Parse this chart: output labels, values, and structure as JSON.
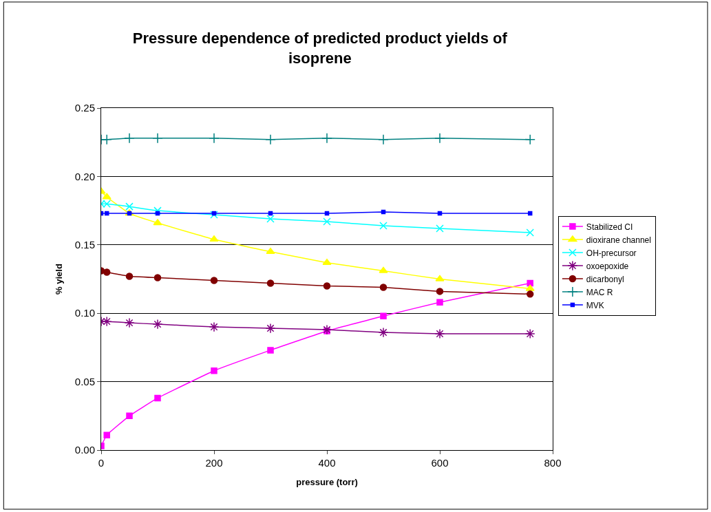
{
  "chart_data": {
    "type": "line",
    "title": "Pressure dependence of predicted product yields of isoprene",
    "xlabel": "pressure (torr)",
    "ylabel": "% yield",
    "x": [
      0,
      10,
      50,
      100,
      200,
      300,
      400,
      500,
      600,
      760
    ],
    "series": [
      {
        "name": "Stabilized CI",
        "color": "#ff00ff",
        "marker": "square",
        "values": [
          0.003,
          0.011,
          0.025,
          0.038,
          0.058,
          0.073,
          0.087,
          0.098,
          0.108,
          0.122
        ]
      },
      {
        "name": "dioxirane channel",
        "color": "#ffff00",
        "marker": "triangle",
        "values": [
          0.189,
          0.185,
          0.173,
          0.166,
          0.154,
          0.145,
          0.137,
          0.131,
          0.125,
          0.118
        ]
      },
      {
        "name": "OH-precursor",
        "color": "#00ffff",
        "marker": "x",
        "values": [
          0.18,
          0.18,
          0.178,
          0.175,
          0.172,
          0.169,
          0.167,
          0.164,
          0.162,
          0.159
        ]
      },
      {
        "name": "oxoepoxide",
        "color": "#800080",
        "marker": "cross",
        "values": [
          0.094,
          0.094,
          0.093,
          0.092,
          0.09,
          0.089,
          0.088,
          0.086,
          0.085,
          0.085
        ]
      },
      {
        "name": "dicarbonyl",
        "color": "#800000",
        "marker": "circle",
        "values": [
          0.131,
          0.13,
          0.127,
          0.126,
          0.124,
          0.122,
          0.12,
          0.119,
          0.116,
          0.114
        ]
      },
      {
        "name": "MAC R",
        "color": "#008080",
        "marker": "cross",
        "values": [
          0.227,
          0.227,
          0.228,
          0.228,
          0.228,
          0.227,
          0.228,
          0.227,
          0.228,
          0.227
        ]
      },
      {
        "name": "MVK",
        "color": "#0000ff",
        "marker": "square",
        "values": [
          0.173,
          0.173,
          0.173,
          0.173,
          0.173,
          0.173,
          0.173,
          0.174,
          0.173,
          0.173
        ]
      }
    ],
    "xlim": [
      0,
      800
    ],
    "xticks": [
      0,
      200,
      400,
      600,
      800
    ],
    "ylim": [
      0,
      0.25
    ],
    "yticks": [
      {
        "value": 0,
        "label": "0.00"
      },
      {
        "value": 0.05,
        "label": "0.05"
      },
      {
        "value": 0.1,
        "label": "0.10"
      },
      {
        "value": 0.15,
        "label": "0.15"
      },
      {
        "value": 0.2,
        "label": "0.20"
      },
      {
        "value": 0.25,
        "label": "0.25"
      }
    ],
    "grid": "y",
    "legend": "right",
    "line_style": "solid"
  }
}
